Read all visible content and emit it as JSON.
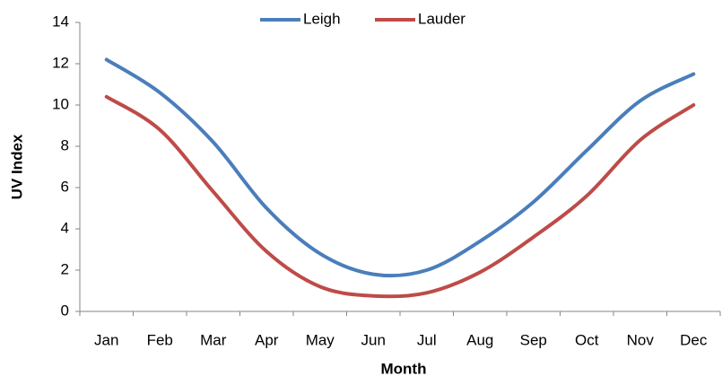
{
  "chart_data": {
    "type": "line",
    "x_label": "Month",
    "y_label": "UV Index",
    "categories": [
      "Jan",
      "Feb",
      "Mar",
      "Apr",
      "May",
      "Jun",
      "Jul",
      "Aug",
      "Sep",
      "Oct",
      "Nov",
      "Dec"
    ],
    "series": [
      {
        "name": "Leigh",
        "color": "#4a7ebb",
        "values": [
          12.2,
          10.6,
          8.2,
          5.0,
          2.8,
          1.8,
          2.0,
          3.4,
          5.3,
          7.8,
          10.2,
          11.5
        ]
      },
      {
        "name": "Lauder",
        "color": "#be4b48",
        "values": [
          10.4,
          8.8,
          5.8,
          2.9,
          1.2,
          0.75,
          0.9,
          1.9,
          3.6,
          5.6,
          8.3,
          10.0
        ]
      }
    ],
    "ylim": [
      0,
      14
    ],
    "yticks": [
      0,
      2,
      4,
      6,
      8,
      10,
      12,
      14
    ],
    "legend": "top",
    "grid": false
  }
}
